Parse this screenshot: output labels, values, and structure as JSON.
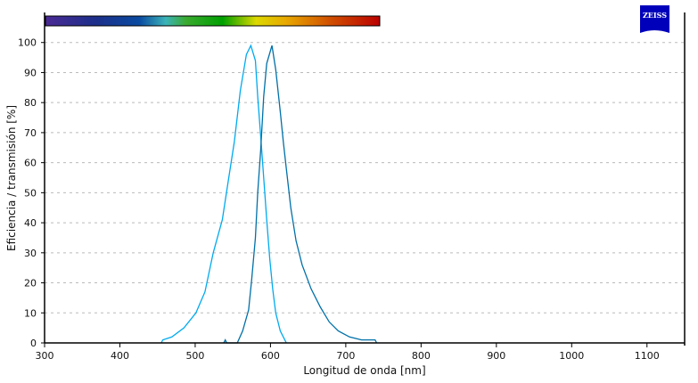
{
  "chart_data": {
    "type": "line",
    "title": "",
    "xlabel": "Longitud de onda [nm]",
    "ylabel": "Eficiencia / transmisión [%]",
    "xlim": [
      300,
      1150
    ],
    "ylim": [
      0,
      110
    ],
    "xticks": [
      300,
      400,
      500,
      600,
      700,
      800,
      900,
      1000,
      1100
    ],
    "yticks": [
      0,
      10,
      20,
      30,
      40,
      50,
      60,
      70,
      80,
      90,
      100
    ],
    "grid": "horizontal dashed",
    "legend": "none",
    "spectrum_bar": {
      "range": [
        300,
        745
      ]
    },
    "series": [
      {
        "color": "#00aaee",
        "x": [
          455,
          457,
          469,
          485,
          501,
          513,
          524,
          536,
          544,
          552,
          560,
          568,
          574,
          580,
          583,
          587,
          591,
          595,
          599,
          603,
          607,
          613,
          621
        ],
        "y": [
          0,
          1,
          2,
          5,
          10,
          17,
          30,
          41,
          54,
          67,
          84,
          96,
          99,
          94,
          82,
          69,
          55,
          41,
          28,
          18,
          10,
          4,
          0
        ]
      },
      {
        "color": "#0070a8",
        "x": [
          538,
          540,
          542,
          556,
          563,
          571,
          575,
          580,
          583,
          587,
          591,
          595,
          602,
          607,
          613,
          617,
          621,
          627,
          634,
          642,
          654,
          666,
          678,
          690,
          705,
          721,
          739,
          741
        ],
        "y": [
          0,
          1,
          0,
          0,
          4,
          11,
          21,
          35,
          50,
          64,
          82,
          93,
          99,
          91,
          77,
          67,
          58,
          45,
          34,
          26,
          18,
          12,
          7,
          4,
          2,
          1,
          1,
          0
        ]
      }
    ]
  },
  "logo": {
    "text": "ZEISS",
    "color": "#0000bb"
  }
}
